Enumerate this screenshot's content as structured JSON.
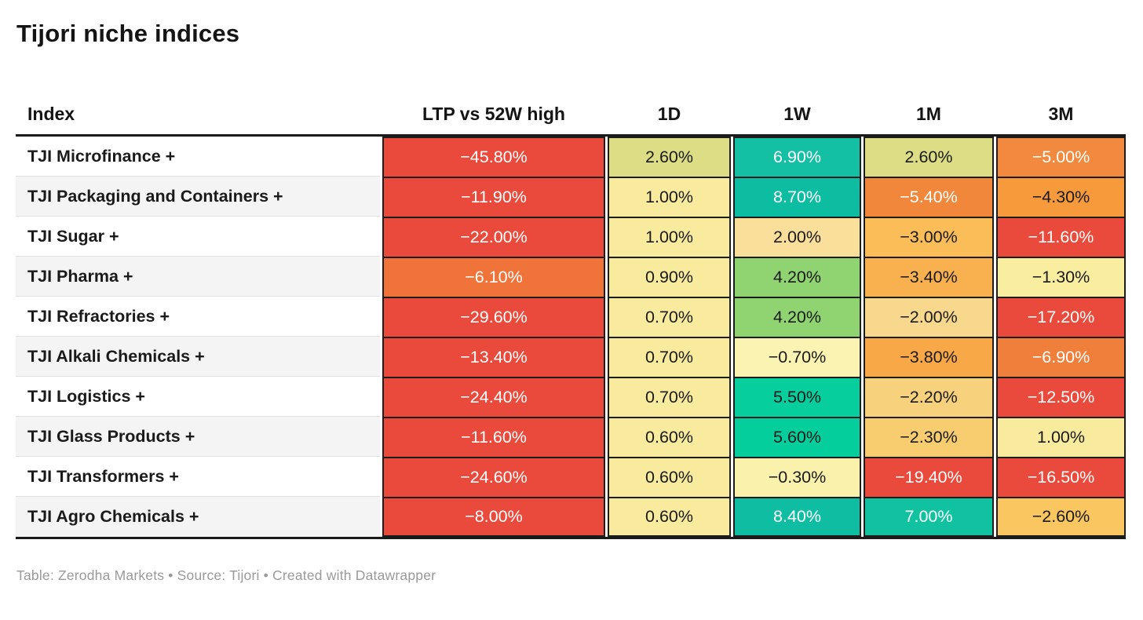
{
  "page": {
    "title": "Tijori niche indices",
    "footer": "Table: Zerodha Markets • Source: Tijori • Created with Datawrapper"
  },
  "colors": {
    "strong_negative": "#EA4A3B",
    "negative_orange": "#F0873B",
    "mild_negative_amber": "#FABD58",
    "neutral_yellow": "#F8EB9D",
    "khaki_positive": "#DCDD85",
    "green_positive": "#8FD470",
    "teal_strong_positive": "#0FBEA2",
    "text_dark": "#1a1a1a",
    "text_light": "#ffffff",
    "row_stripe": "#f4f4f4",
    "table_border": "#1a1a1a"
  },
  "table": {
    "columns": [
      "Index",
      "LTP vs 52W high",
      "1D",
      "1W",
      "1M",
      "3M"
    ],
    "rows": [
      {
        "index": "TJI Microfinance +",
        "cells": [
          {
            "value": "−45.80%",
            "bg": "#EA4A3B",
            "fg": "#ffffff"
          },
          {
            "value": "2.60%",
            "bg": "#DCDD85",
            "fg": "#1a1a1a"
          },
          {
            "value": "6.90%",
            "bg": "#14C0A3",
            "fg": "#ffffff"
          },
          {
            "value": "2.60%",
            "bg": "#DCDD85",
            "fg": "#1a1a1a"
          },
          {
            "value": "−5.00%",
            "bg": "#F18A3E",
            "fg": "#ffffff"
          }
        ]
      },
      {
        "index": "TJI Packaging and Containers +",
        "cells": [
          {
            "value": "−11.90%",
            "bg": "#EA4A3B",
            "fg": "#ffffff"
          },
          {
            "value": "1.00%",
            "bg": "#F8EB9D",
            "fg": "#1a1a1a"
          },
          {
            "value": "8.70%",
            "bg": "#0CBDA1",
            "fg": "#ffffff"
          },
          {
            "value": "−5.40%",
            "bg": "#F0873B",
            "fg": "#ffffff"
          },
          {
            "value": "−4.30%",
            "bg": "#F79A3C",
            "fg": "#1a1a1a"
          }
        ]
      },
      {
        "index": "TJI Sugar +",
        "cells": [
          {
            "value": "−22.00%",
            "bg": "#EA4A3B",
            "fg": "#ffffff"
          },
          {
            "value": "1.00%",
            "bg": "#F8EB9D",
            "fg": "#1a1a1a"
          },
          {
            "value": "2.00%",
            "bg": "#FADF9A",
            "fg": "#1a1a1a"
          },
          {
            "value": "−3.00%",
            "bg": "#FABD58",
            "fg": "#1a1a1a"
          },
          {
            "value": "−11.60%",
            "bg": "#EA4A3B",
            "fg": "#ffffff"
          }
        ]
      },
      {
        "index": "TJI Pharma +",
        "cells": [
          {
            "value": "−6.10%",
            "bg": "#F0743A",
            "fg": "#ffffff"
          },
          {
            "value": "0.90%",
            "bg": "#F8EB9D",
            "fg": "#1a1a1a"
          },
          {
            "value": "4.20%",
            "bg": "#8FD470",
            "fg": "#1a1a1a"
          },
          {
            "value": "−3.40%",
            "bg": "#F9B150",
            "fg": "#1a1a1a"
          },
          {
            "value": "−1.30%",
            "bg": "#F9EDA0",
            "fg": "#1a1a1a"
          }
        ]
      },
      {
        "index": "TJI Refractories +",
        "cells": [
          {
            "value": "−29.60%",
            "bg": "#EA4A3B",
            "fg": "#ffffff"
          },
          {
            "value": "0.70%",
            "bg": "#F8EB9D",
            "fg": "#1a1a1a"
          },
          {
            "value": "4.20%",
            "bg": "#8FD470",
            "fg": "#1a1a1a"
          },
          {
            "value": "−2.00%",
            "bg": "#F8D88C",
            "fg": "#1a1a1a"
          },
          {
            "value": "−17.20%",
            "bg": "#EA4A3B",
            "fg": "#ffffff"
          }
        ]
      },
      {
        "index": "TJI Alkali Chemicals +",
        "cells": [
          {
            "value": "−13.40%",
            "bg": "#EA4A3B",
            "fg": "#ffffff"
          },
          {
            "value": "0.70%",
            "bg": "#F8EB9D",
            "fg": "#1a1a1a"
          },
          {
            "value": "−0.70%",
            "bg": "#FAF3B1",
            "fg": "#1a1a1a"
          },
          {
            "value": "−3.80%",
            "bg": "#F9A848",
            "fg": "#1a1a1a"
          },
          {
            "value": "−6.90%",
            "bg": "#F07F3C",
            "fg": "#ffffff"
          }
        ]
      },
      {
        "index": "TJI Logistics +",
        "cells": [
          {
            "value": "−24.40%",
            "bg": "#EA4A3B",
            "fg": "#ffffff"
          },
          {
            "value": "0.70%",
            "bg": "#F8EB9D",
            "fg": "#1a1a1a"
          },
          {
            "value": "5.50%",
            "bg": "#06CE9C",
            "fg": "#1a1a1a"
          },
          {
            "value": "−2.20%",
            "bg": "#F7D17B",
            "fg": "#1a1a1a"
          },
          {
            "value": "−12.50%",
            "bg": "#EA4A3B",
            "fg": "#ffffff"
          }
        ]
      },
      {
        "index": "TJI Glass Products +",
        "cells": [
          {
            "value": "−11.60%",
            "bg": "#EA4A3B",
            "fg": "#ffffff"
          },
          {
            "value": "0.60%",
            "bg": "#F8EB9D",
            "fg": "#1a1a1a"
          },
          {
            "value": "5.60%",
            "bg": "#05CE9D",
            "fg": "#1a1a1a"
          },
          {
            "value": "−2.30%",
            "bg": "#F8CD6F",
            "fg": "#1a1a1a"
          },
          {
            "value": "1.00%",
            "bg": "#F8EB9D",
            "fg": "#1a1a1a"
          }
        ]
      },
      {
        "index": "TJI Transformers +",
        "cells": [
          {
            "value": "−24.60%",
            "bg": "#EA4A3B",
            "fg": "#ffffff"
          },
          {
            "value": "0.60%",
            "bg": "#F8EB9D",
            "fg": "#1a1a1a"
          },
          {
            "value": "−0.30%",
            "bg": "#FAF1AC",
            "fg": "#1a1a1a"
          },
          {
            "value": "−19.40%",
            "bg": "#EA4A3B",
            "fg": "#ffffff"
          },
          {
            "value": "−16.50%",
            "bg": "#EA4A3B",
            "fg": "#ffffff"
          }
        ]
      },
      {
        "index": "TJI Agro Chemicals +",
        "cells": [
          {
            "value": "−8.00%",
            "bg": "#EA4A3B",
            "fg": "#ffffff"
          },
          {
            "value": "0.60%",
            "bg": "#F8EB9D",
            "fg": "#1a1a1a"
          },
          {
            "value": "8.40%",
            "bg": "#0FBEA2",
            "fg": "#ffffff"
          },
          {
            "value": "7.00%",
            "bg": "#11C2A1",
            "fg": "#ffffff"
          },
          {
            "value": "−2.60%",
            "bg": "#F9C65F",
            "fg": "#1a1a1a"
          }
        ]
      }
    ]
  },
  "chart_data": {
    "type": "table",
    "title": "Tijori niche indices",
    "columns": [
      "Index",
      "LTP vs 52W high",
      "1D",
      "1W",
      "1M",
      "3M"
    ],
    "units": "percent",
    "rows": [
      [
        "TJI Microfinance +",
        -45.8,
        2.6,
        6.9,
        2.6,
        -5.0
      ],
      [
        "TJI Packaging and Containers +",
        -11.9,
        1.0,
        8.7,
        -5.4,
        -4.3
      ],
      [
        "TJI Sugar +",
        -22.0,
        1.0,
        2.0,
        -3.0,
        -11.6
      ],
      [
        "TJI Pharma +",
        -6.1,
        0.9,
        4.2,
        -3.4,
        -1.3
      ],
      [
        "TJI Refractories +",
        -29.6,
        0.7,
        4.2,
        -2.0,
        -17.2
      ],
      [
        "TJI Alkali Chemicals +",
        -13.4,
        0.7,
        -0.7,
        -3.8,
        -6.9
      ],
      [
        "TJI Logistics +",
        -24.4,
        0.7,
        5.5,
        -2.2,
        -12.5
      ],
      [
        "TJI Glass Products +",
        -11.6,
        0.6,
        5.6,
        -2.3,
        1.0
      ],
      [
        "TJI Transformers +",
        -24.6,
        0.6,
        -0.3,
        -19.4,
        -16.5
      ],
      [
        "TJI Agro Chemicals +",
        -8.0,
        0.6,
        8.4,
        7.0,
        -2.6
      ]
    ],
    "cell_shading": "diverging heatmap: red (strong negative) → orange → yellow (near zero) → green/teal (strong positive)",
    "layout_hints": {
      "value_align": "center",
      "index_stripe_even_rows": true
    },
    "credit": "Table: Zerodha Markets",
    "source": "Source: Tijori",
    "tool": "Created with Datawrapper"
  }
}
